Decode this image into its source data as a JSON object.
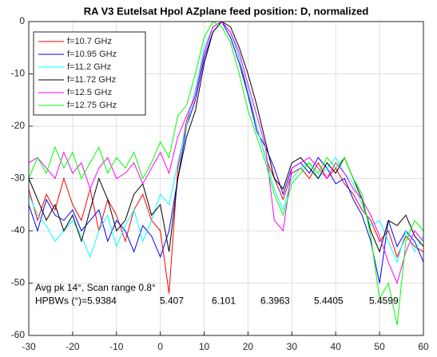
{
  "chart_data": {
    "type": "line",
    "title": "RA V3 Eutelsat Hpol AZplane feed position: D, normalized",
    "x": [
      -30,
      -28,
      -26,
      -24,
      -22,
      -20,
      -18,
      -16,
      -14,
      -12,
      -10,
      -8,
      -6,
      -4,
      -2,
      0,
      2,
      4,
      6,
      8,
      10,
      12,
      14,
      16,
      18,
      20,
      22,
      24,
      26,
      28,
      30,
      32,
      34,
      36,
      38,
      40,
      42,
      44,
      46,
      48,
      50,
      52,
      54,
      56,
      58,
      60
    ],
    "series": [
      {
        "name": "f=10.7 GHz",
        "color": "#ff0000",
        "values": [
          -32,
          -38,
          -33,
          -36,
          -30,
          -35,
          -38,
          -32,
          -40,
          -34,
          -37,
          -42,
          -36,
          -33,
          -38,
          -40,
          -52,
          -28,
          -19,
          -14,
          -6,
          -1,
          0,
          -2,
          -7,
          -14,
          -20,
          -26,
          -30,
          -34,
          -29,
          -28,
          -30,
          -27,
          -30,
          -28,
          -31,
          -33,
          -36,
          -38,
          -42,
          -40,
          -45,
          -41,
          -43,
          -44
        ]
      },
      {
        "name": "f=10.95 GHz",
        "color": "#0000ff",
        "values": [
          -35,
          -40,
          -34,
          -37,
          -38,
          -36,
          -40,
          -38,
          -36,
          -42,
          -38,
          -40,
          -44,
          -39,
          -41,
          -45,
          -40,
          -30,
          -20,
          -15,
          -7,
          -2,
          0,
          -3,
          -8,
          -14,
          -21,
          -24,
          -28,
          -33,
          -28,
          -27,
          -29,
          -26,
          -28,
          -31,
          -30,
          -34,
          -37,
          -42,
          -50,
          -38,
          -43,
          -40,
          -42,
          -46
        ]
      },
      {
        "name": "f=11.2 GHz",
        "color": "#00ffff",
        "values": [
          -33,
          -37,
          -39,
          -42,
          -40,
          -38,
          -41,
          -45,
          -40,
          -37,
          -43,
          -39,
          -36,
          -42,
          -38,
          -33,
          -35,
          -27,
          -20,
          -13,
          -5,
          -1,
          0,
          -2,
          -7,
          -13,
          -20,
          -26,
          -32,
          -36,
          -30,
          -28,
          -27,
          -30,
          -28,
          -26,
          -29,
          -31,
          -35,
          -39,
          -38,
          -42,
          -46,
          -40,
          -44,
          -41
        ]
      },
      {
        "name": "f=11.72 GHz",
        "color": "#000000",
        "values": [
          -30,
          -34,
          -38,
          -35,
          -40,
          -37,
          -42,
          -36,
          -30,
          -34,
          -40,
          -38,
          -33,
          -31,
          -37,
          -35,
          -44,
          -30,
          -22,
          -17,
          -8,
          -2,
          0,
          -1,
          -5,
          -10,
          -16,
          -23,
          -30,
          -32,
          -27,
          -26,
          -28,
          -30,
          -27,
          -29,
          -26,
          -30,
          -34,
          -40,
          -44,
          -38,
          -39,
          -37,
          -41,
          -43
        ]
      },
      {
        "name": "f=12.5 GHz",
        "color": "#ff00ff",
        "values": [
          -27,
          -26,
          -28,
          -30,
          -25,
          -29,
          -27,
          -32,
          -28,
          -26,
          -30,
          -29,
          -27,
          -31,
          -28,
          -25,
          -29,
          -22,
          -18,
          -14,
          -6,
          -1,
          0,
          -2,
          -6,
          -12,
          -18,
          -24,
          -38,
          -40,
          -28,
          -27,
          -26,
          -28,
          -30,
          -27,
          -29,
          -32,
          -34,
          -37,
          -41,
          -46,
          -50,
          -44,
          -40,
          -42
        ]
      },
      {
        "name": "f=12.75 GHz",
        "color": "#00ff00",
        "values": [
          -30,
          -26,
          -29,
          -24,
          -28,
          -25,
          -30,
          -27,
          -24,
          -29,
          -26,
          -28,
          -25,
          -30,
          -27,
          -23,
          -26,
          -18,
          -16,
          -10,
          -3,
          0,
          -1,
          -4,
          -10,
          -17,
          -22,
          -27,
          -33,
          -37,
          -31,
          -29,
          -27,
          -29,
          -26,
          -28,
          -26,
          -30,
          -33,
          -41,
          -53,
          -50,
          -58,
          -42,
          -38,
          -40
        ]
      }
    ],
    "xlim": [
      -30,
      60
    ],
    "xticks": [
      -30,
      -20,
      -10,
      0,
      10,
      20,
      30,
      40,
      50,
      60
    ],
    "ylim": [
      -60,
      0
    ],
    "yticks": [
      -60,
      -50,
      -40,
      -30,
      -20,
      -10,
      0
    ],
    "grid": true,
    "legend": "northwest",
    "annotations": [
      "Avg pk 14°, Scan range 0.8°",
      "HPBWs (°)=5.9384",
      "5.407",
      "6.101",
      "6.3963",
      "5.4405",
      "5.4599"
    ]
  }
}
